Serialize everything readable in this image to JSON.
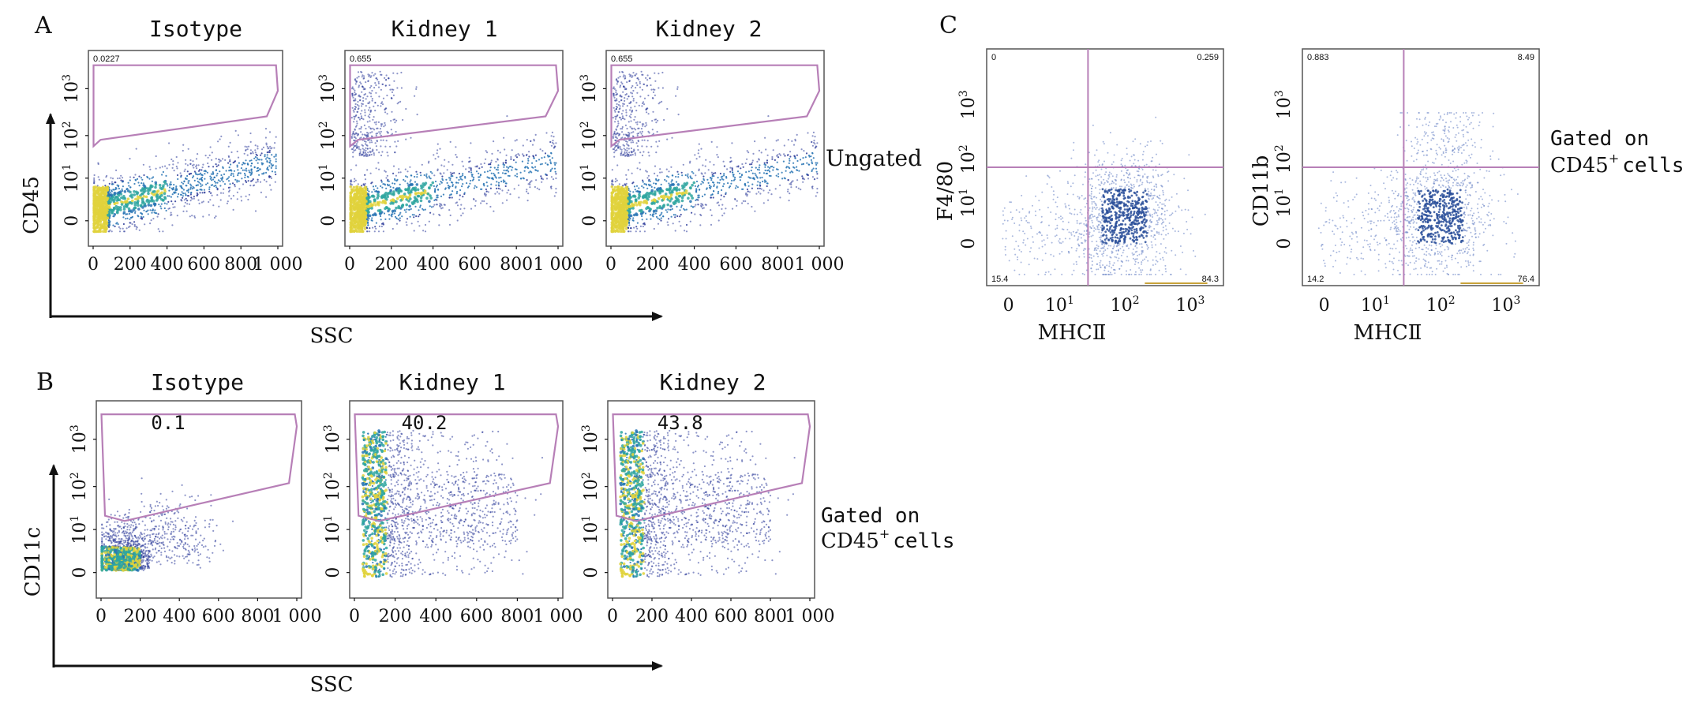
{
  "panel_labels": {
    "A": "A",
    "B": "B",
    "C": "C"
  },
  "A": {
    "titles": [
      "Isotype",
      "Kidney 1",
      "Kidney 2"
    ],
    "ylabel": "CD45",
    "xlabel": "SSC",
    "side_note": "Ungated",
    "x_ticks": [
      "0",
      "200",
      "400",
      "600",
      "800",
      "1 000"
    ],
    "y_ticks": [
      {
        "base": "0",
        "exp": ""
      },
      {
        "base": "10",
        "exp": "1"
      },
      {
        "base": "10",
        "exp": "2"
      },
      {
        "base": "10",
        "exp": "3"
      }
    ],
    "gate_values": [
      "0.0227",
      "0.655",
      "0.655"
    ]
  },
  "B": {
    "titles": [
      "Isotype",
      "Kidney 1",
      "Kidney 2"
    ],
    "ylabel": "CD11c",
    "xlabel": "SSC",
    "side_note_line1": "Gated on",
    "side_note_line2_main": "CD45",
    "side_note_line2_sup": "+",
    "side_note_line2_tail": "cells",
    "x_ticks": [
      "0",
      "200",
      "400",
      "600",
      "800",
      "1 000"
    ],
    "y_ticks": [
      {
        "base": "0",
        "exp": ""
      },
      {
        "base": "10",
        "exp": "1"
      },
      {
        "base": "10",
        "exp": "2"
      },
      {
        "base": "10",
        "exp": "3"
      }
    ],
    "gate_values": [
      "0.1",
      "40.2",
      "43.8"
    ]
  },
  "C": {
    "ylabels": [
      "F4/80",
      "CD11b"
    ],
    "xlabel": "MHCⅡ",
    "x_ticks": [
      {
        "base": "0",
        "exp": ""
      },
      {
        "base": "10",
        "exp": "1"
      },
      {
        "base": "10",
        "exp": "2"
      },
      {
        "base": "10",
        "exp": "3"
      }
    ],
    "y_ticks": [
      {
        "base": "0",
        "exp": ""
      },
      {
        "base": "10",
        "exp": "1"
      },
      {
        "base": "10",
        "exp": "2"
      },
      {
        "base": "10",
        "exp": "3"
      }
    ],
    "side_note_line1": "Gated on",
    "side_note_line2_main": "CD45",
    "side_note_line2_sup": "+",
    "side_note_line2_tail": "cells",
    "quadrants": [
      {
        "ul": "0",
        "ur": "0.259",
        "ll": "15.4",
        "lr": "84.3"
      },
      {
        "ul": "0.883",
        "ur": "8.49",
        "ll": "14.2",
        "lr": "76.4"
      }
    ]
  },
  "colors": {
    "gate": "#b77fb7",
    "density_low": "#2e3c9a",
    "density_mid": "#2fa6a0",
    "density_high": "#e0d23c",
    "axis": "#111111"
  },
  "chart_data": [
    {
      "type": "scatter",
      "title": "Isotype",
      "panel": "A",
      "xlabel": "SSC",
      "ylabel": "CD45",
      "xlim": [
        0,
        1000
      ],
      "yscale": "log",
      "gate_percent": 0.0227
    },
    {
      "type": "scatter",
      "title": "Kidney 1",
      "panel": "A",
      "xlabel": "SSC",
      "ylabel": "CD45",
      "xlim": [
        0,
        1000
      ],
      "yscale": "log",
      "gate_percent": 0.655
    },
    {
      "type": "scatter",
      "title": "Kidney 2",
      "panel": "A",
      "xlabel": "SSC",
      "ylabel": "CD45",
      "xlim": [
        0,
        1000
      ],
      "yscale": "log",
      "gate_percent": 0.655
    },
    {
      "type": "scatter",
      "title": "Isotype",
      "panel": "B",
      "xlabel": "SSC",
      "ylabel": "CD11c",
      "xlim": [
        0,
        1000
      ],
      "yscale": "log",
      "gate_percent": 0.1
    },
    {
      "type": "scatter",
      "title": "Kidney 1",
      "panel": "B",
      "xlabel": "SSC",
      "ylabel": "CD11c",
      "xlim": [
        0,
        1000
      ],
      "yscale": "log",
      "gate_percent": 40.2
    },
    {
      "type": "scatter",
      "title": "Kidney 2",
      "panel": "B",
      "xlabel": "SSC",
      "ylabel": "CD11c",
      "xlim": [
        0,
        1000
      ],
      "yscale": "log",
      "gate_percent": 43.8
    },
    {
      "type": "scatter",
      "panel": "C",
      "xlabel": "MHCⅡ",
      "ylabel": "F4/80",
      "xscale": "log",
      "yscale": "log",
      "quadrant_percent": {
        "upper_left": 0,
        "upper_right": 0.259,
        "lower_left": 15.4,
        "lower_right": 84.3
      }
    },
    {
      "type": "scatter",
      "panel": "C",
      "xlabel": "MHCⅡ",
      "ylabel": "CD11b",
      "xscale": "log",
      "yscale": "log",
      "quadrant_percent": {
        "upper_left": 0.883,
        "upper_right": 8.49,
        "lower_left": 14.2,
        "lower_right": 76.4
      }
    }
  ]
}
